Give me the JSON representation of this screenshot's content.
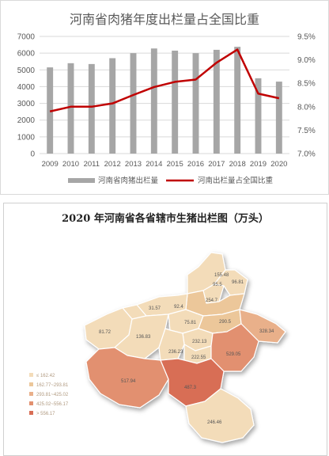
{
  "chart_data": [
    {
      "type": "bar",
      "title": "河南省肉猪年度出栏量占全国比重",
      "categories": [
        "2009",
        "2010",
        "2011",
        "2012",
        "2013",
        "2014",
        "2015",
        "2016",
        "2017",
        "2018",
        "2019",
        "2020"
      ],
      "series": [
        {
          "name": "河南省肉猪出栏量",
          "type": "bar",
          "axis": "left",
          "color": "#a6a6a6",
          "values": [
            5150,
            5400,
            5350,
            5700,
            6000,
            6280,
            6150,
            6000,
            6200,
            6380,
            4500,
            4300
          ]
        },
        {
          "name": "河南出栏量占全国比重",
          "type": "line",
          "axis": "right",
          "color": "#c00000",
          "values": [
            7.9,
            8.0,
            8.0,
            8.07,
            8.25,
            8.42,
            8.53,
            8.58,
            8.94,
            9.22,
            8.28,
            8.18
          ]
        }
      ],
      "y_left": {
        "min": 0,
        "max": 7000,
        "ticks": [
          "0",
          "1000",
          "2000",
          "3000",
          "4000",
          "5000",
          "6000",
          "7000"
        ]
      },
      "y_right": {
        "min": 7.0,
        "max": 9.5,
        "ticks": [
          "7.0%",
          "7.5%",
          "8.0%",
          "8.5%",
          "9.0%",
          "9.5%"
        ]
      },
      "legend_placement": "bottom",
      "grid": true
    },
    {
      "type": "choropleth-map",
      "title": "2020 年河南省各省辖市生猪出栏图（万头）",
      "labels": [
        "155.48",
        "95.5",
        "96.81",
        "254.7",
        "31.57",
        "92.4",
        "81.72",
        "136.83",
        "75.81",
        "290.5",
        "328.34",
        "232.13",
        "236.23",
        "222.55",
        "529.05",
        "517.94",
        "487.3",
        "246.46"
      ],
      "legend": [
        "≤ 162.42",
        "162.77~293.81",
        "293.81~425.02",
        "425.02~556.17",
        "> 556.17"
      ],
      "legend_colors": [
        "#f3dcb9",
        "#ecc79a",
        "#e9b08a",
        "#e2906f",
        "#d86e55"
      ]
    }
  ]
}
